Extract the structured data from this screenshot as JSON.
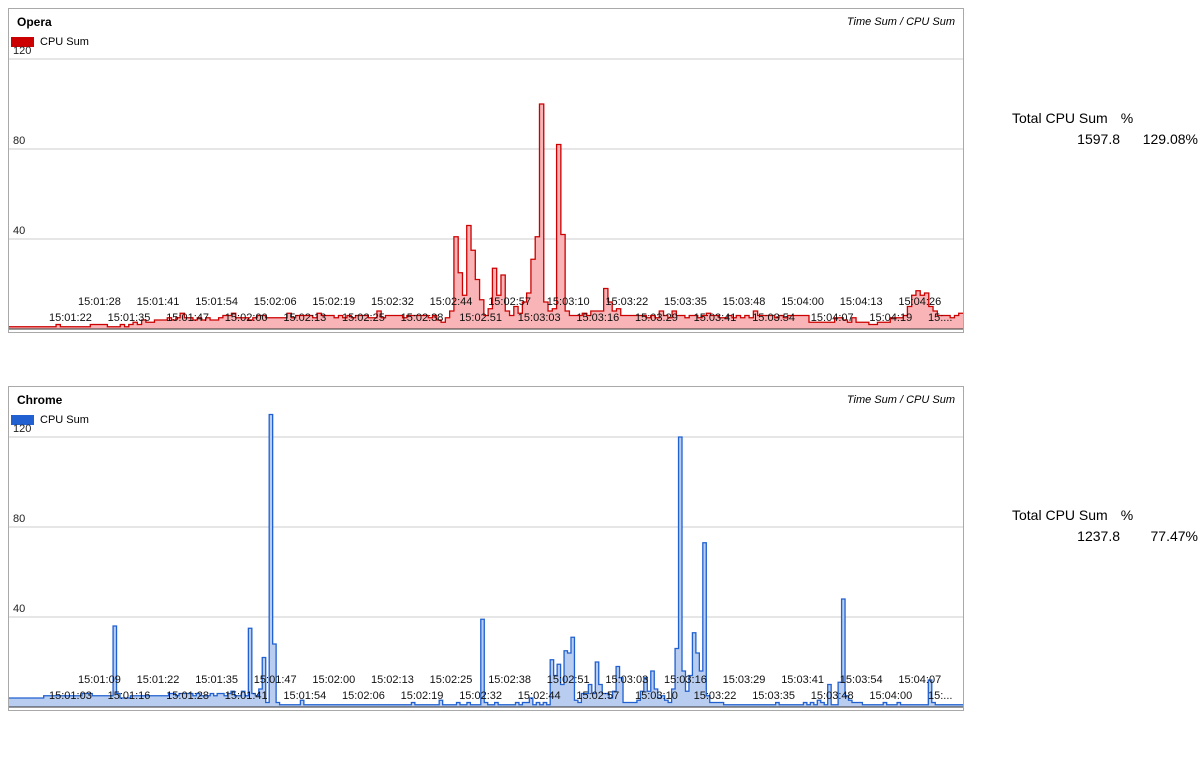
{
  "charts": [
    {
      "id": "opera",
      "title": "Opera",
      "subtitle": "Time Sum / CPU Sum",
      "legend": "CPU Sum",
      "color": "#cc0000",
      "fill": "#f8b4b6",
      "totals": {
        "label": "Total CPU Sum",
        "pct_label": "%",
        "sum": "1597.8",
        "pct": "129.08%"
      }
    },
    {
      "id": "chrome",
      "title": "Chrome",
      "subtitle": "Time Sum / CPU Sum",
      "legend": "CPU Sum",
      "color": "#2060d0",
      "fill": "#b8cdf0",
      "totals": {
        "label": "Total CPU Sum",
        "pct_label": "%",
        "sum": "1237.8",
        "pct": "77.47%"
      }
    }
  ],
  "chart_data": [
    {
      "type": "area",
      "title": "Opera",
      "subtitle": "Time Sum / CPU Sum",
      "series": [
        {
          "name": "CPU Sum",
          "values": [
            1,
            1,
            1,
            1,
            1,
            1,
            1,
            1,
            1,
            1,
            1,
            2,
            1,
            1,
            1,
            1,
            1,
            1,
            1,
            2,
            2,
            2,
            2,
            1,
            1,
            1,
            2,
            1,
            2,
            3,
            2,
            4,
            3,
            3,
            4,
            4,
            4,
            5,
            4,
            5,
            7,
            5,
            5,
            4,
            5,
            4,
            5,
            4,
            4,
            5,
            6,
            6,
            7,
            5,
            5,
            5,
            4,
            5,
            6,
            6,
            5,
            5,
            5,
            5,
            5,
            7,
            5,
            6,
            6,
            6,
            6,
            5,
            7,
            6,
            6,
            6,
            5,
            6,
            5,
            6,
            5,
            6,
            6,
            6,
            5,
            5,
            8,
            5,
            6,
            6,
            6,
            6,
            5,
            6,
            6,
            6,
            6,
            6,
            5,
            6,
            4,
            3,
            5,
            8,
            41,
            25,
            15,
            46,
            35,
            22,
            13,
            6,
            9,
            27,
            15,
            24,
            8,
            6,
            10,
            7,
            12,
            16,
            31,
            41,
            100,
            12,
            8,
            9,
            82,
            42,
            8,
            6,
            6,
            6,
            7,
            6,
            8,
            8,
            8,
            18,
            12,
            8,
            9,
            6,
            6,
            6,
            6,
            6,
            6,
            5,
            6,
            5,
            8,
            6,
            5,
            8,
            6,
            6,
            5,
            6,
            6,
            5,
            6,
            7,
            6,
            6,
            5,
            5,
            6,
            5,
            6,
            5,
            6,
            5,
            8,
            6,
            6,
            6,
            6,
            5,
            6,
            5,
            6,
            6,
            6,
            6,
            6,
            3,
            3,
            3,
            3,
            3,
            3,
            5,
            5,
            4,
            3,
            5,
            3,
            3,
            3,
            2,
            2,
            3,
            3,
            3,
            5,
            5,
            5,
            6,
            10,
            15,
            17,
            15,
            16,
            10,
            8,
            6,
            6,
            6,
            5,
            6,
            7
          ]
        }
      ],
      "tick_labels_upper": [
        "15:01:28",
        "15:01:41",
        "15:01:54",
        "15:02:06",
        "15:02:19",
        "15:02:32",
        "15:02:44",
        "15:02:57",
        "15:03:10",
        "15:03:22",
        "15:03:35",
        "15:03:48",
        "15:04:00",
        "15:04:13",
        "15:04:26"
      ],
      "tick_labels_lower": [
        "15:01:22",
        "15:01:35",
        "15:01:47",
        "15:02:00",
        "15:02:13",
        "15:02:25",
        "15:02:38",
        "15:02:51",
        "15:03:03",
        "15:03:16",
        "15:03:29",
        "15:03:41",
        "15:03:54",
        "15:04:07",
        "15:04:19",
        "15:..."
      ],
      "y_ticks": [
        40,
        80,
        120
      ],
      "ylim": [
        0,
        120
      ],
      "grid": true,
      "legend_placement": "top-left"
    },
    {
      "type": "area",
      "title": "Chrome",
      "subtitle": "Time Sum / CPU Sum",
      "series": [
        {
          "name": "CPU Sum",
          "values": [
            4,
            4,
            4,
            4,
            4,
            4,
            4,
            4,
            4,
            4,
            5,
            5,
            5,
            5,
            5,
            5,
            5,
            5,
            5,
            5,
            5,
            6,
            6,
            6,
            5,
            5,
            5,
            5,
            5,
            5,
            36,
            6,
            4,
            4,
            4,
            5,
            5,
            5,
            5,
            5,
            5,
            5,
            5,
            5,
            5,
            5,
            6,
            6,
            5,
            6,
            6,
            6,
            6,
            5,
            6,
            5,
            5,
            5,
            6,
            5,
            6,
            6,
            5,
            6,
            7,
            5,
            5,
            7,
            5,
            35,
            6,
            5,
            8,
            22,
            2,
            130,
            28,
            2,
            1,
            1,
            1,
            1,
            1,
            1,
            3,
            1,
            1,
            1,
            1,
            1,
            1,
            1,
            1,
            1,
            1,
            1,
            1,
            1,
            1,
            1,
            1,
            1,
            1,
            1,
            1,
            1,
            1,
            1,
            1,
            1,
            1,
            1,
            1,
            1,
            1,
            1,
            2,
            1,
            1,
            1,
            1,
            1,
            1,
            1,
            3,
            1,
            1,
            1,
            1,
            2,
            1,
            1,
            2,
            1,
            1,
            1,
            39,
            2,
            1,
            1,
            2,
            1,
            1,
            1,
            1,
            1,
            2,
            1,
            2,
            2,
            4,
            1,
            2,
            1,
            2,
            1,
            21,
            14,
            19,
            10,
            25,
            24,
            31,
            3,
            2,
            6,
            6,
            10,
            6,
            20,
            10,
            6,
            6,
            4,
            7,
            18,
            13,
            2,
            2,
            2,
            2,
            3,
            7,
            13,
            7,
            16,
            8,
            4,
            5,
            3,
            2,
            8,
            26,
            120,
            16,
            7,
            14,
            33,
            24,
            16,
            73,
            5,
            2,
            2,
            2,
            2,
            1,
            1,
            1,
            1,
            1,
            1,
            1,
            1,
            1,
            1,
            1,
            1,
            1,
            1,
            1,
            2,
            1,
            1,
            1,
            1,
            1,
            1,
            1,
            2,
            1,
            2,
            1,
            3,
            2,
            1,
            10,
            1,
            1,
            11,
            48,
            5,
            3,
            2,
            2,
            2,
            1,
            1,
            1,
            1,
            1,
            1,
            2,
            1,
            1,
            1,
            2,
            1,
            1,
            1,
            1,
            1,
            1,
            1,
            1,
            12,
            2,
            1,
            1,
            1,
            1,
            1,
            1,
            1,
            1
          ]
        }
      ],
      "tick_labels_upper": [
        "15:01:09",
        "15:01:22",
        "15:01:35",
        "15:01:47",
        "15:02:00",
        "15:02:13",
        "15:02:25",
        "15:02:38",
        "15:02:51",
        "15:03:03",
        "15:03:16",
        "15:03:29",
        "15:03:41",
        "15:03:54",
        "15:04:07"
      ],
      "tick_labels_lower": [
        "15:01:03",
        "15:01:16",
        "15:01:28",
        "15:01:41",
        "15:01:54",
        "15:02:06",
        "15:02:19",
        "15:02:32",
        "15:02:44",
        "15:02:57",
        "15:03:10",
        "15:03:22",
        "15:03:35",
        "15:03:48",
        "15:04:00",
        "15:..."
      ],
      "y_ticks": [
        40,
        80,
        120
      ],
      "ylim": [
        0,
        120
      ],
      "grid": true,
      "legend_placement": "top-left"
    }
  ]
}
